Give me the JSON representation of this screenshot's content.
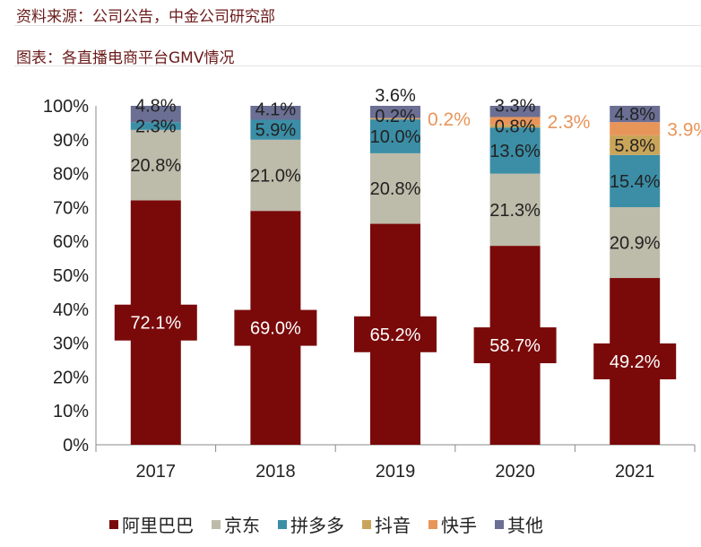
{
  "header": {
    "source": "资料来源：公司公告，中金公司研究部",
    "title": "图表：各直播电商平台GMV情况"
  },
  "chart_data": {
    "type": "bar",
    "stacked": true,
    "categories": [
      "2017",
      "2018",
      "2019",
      "2020",
      "2021"
    ],
    "ylim": [
      0,
      100
    ],
    "yticks": [
      "0%",
      "10%",
      "20%",
      "30%",
      "40%",
      "50%",
      "60%",
      "70%",
      "80%",
      "90%",
      "100%"
    ],
    "legend_position": "bottom",
    "grid": false,
    "series": [
      {
        "name": "阿里巴巴",
        "color": "#7a0a0a",
        "values": [
          72.1,
          69.0,
          65.2,
          58.7,
          49.2
        ],
        "labels": [
          "72.1%",
          "69.0%",
          "65.2%",
          "58.7%",
          "49.2%"
        ]
      },
      {
        "name": "京东",
        "color": "#bdbba9",
        "values": [
          20.8,
          21.0,
          20.8,
          21.3,
          20.9
        ],
        "labels": [
          "20.8%",
          "21.0%",
          "20.8%",
          "21.3%",
          "20.9%"
        ]
      },
      {
        "name": "拼多多",
        "color": "#3b8ea6",
        "values": [
          2.3,
          5.9,
          10.0,
          13.6,
          15.4
        ],
        "labels": [
          "2.3%",
          "5.9%",
          "10.0%",
          "13.6%",
          "15.4%"
        ]
      },
      {
        "name": "抖音",
        "color": "#c9a55a",
        "values": [
          0,
          0,
          0.2,
          0.8,
          5.8
        ],
        "labels": [
          "",
          "",
          "0.2%",
          "0.8%",
          "5.8%"
        ]
      },
      {
        "name": "快手",
        "color": "#e8955a",
        "values": [
          0,
          0,
          0.2,
          2.3,
          3.9
        ],
        "labels": [
          "",
          "",
          "0.2%",
          "2.3%",
          "3.9%"
        ]
      },
      {
        "name": "其他",
        "color": "#6b6f93",
        "values": [
          4.8,
          4.1,
          3.6,
          3.3,
          4.8
        ],
        "labels": [
          "4.8%",
          "4.1%",
          "3.6%",
          "3.3%",
          "4.8%"
        ]
      }
    ]
  }
}
